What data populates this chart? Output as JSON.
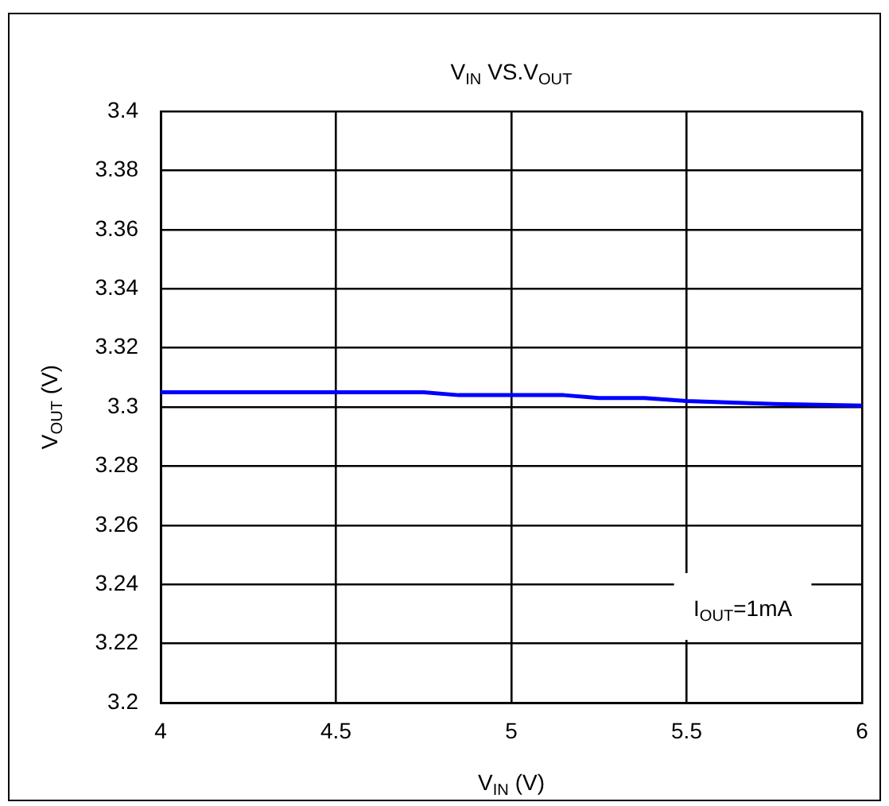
{
  "chart_data": {
    "type": "line",
    "title": "V$_{IN}$ VS.V$_{OUT}$",
    "xlabel": "V$_{IN}$ (V)",
    "ylabel": "V$_{OUT}$ (V)",
    "x": [
      4,
      4.25,
      4.5,
      4.75,
      4.85,
      5,
      5.15,
      5.25,
      5.38,
      5.5,
      5.75,
      6
    ],
    "series": [
      {
        "color": "#0000ff",
        "values": [
          3.305,
          3.305,
          3.305,
          3.305,
          3.304,
          3.304,
          3.304,
          3.303,
          3.303,
          3.302,
          3.301,
          3.3005
        ]
      }
    ],
    "xlim": [
      4,
      6
    ],
    "xticks": [
      4,
      4.5,
      5,
      5.5,
      6
    ],
    "ylim": [
      3.2,
      3.4
    ],
    "yticks": [
      3.2,
      3.22,
      3.24,
      3.26,
      3.28,
      3.3,
      3.32,
      3.34,
      3.36,
      3.38,
      3.4
    ],
    "grid": true,
    "legend": false,
    "marker": "none",
    "line_style": "solid",
    "annotations": [
      "I$_{OUT}$=1mA"
    ]
  }
}
